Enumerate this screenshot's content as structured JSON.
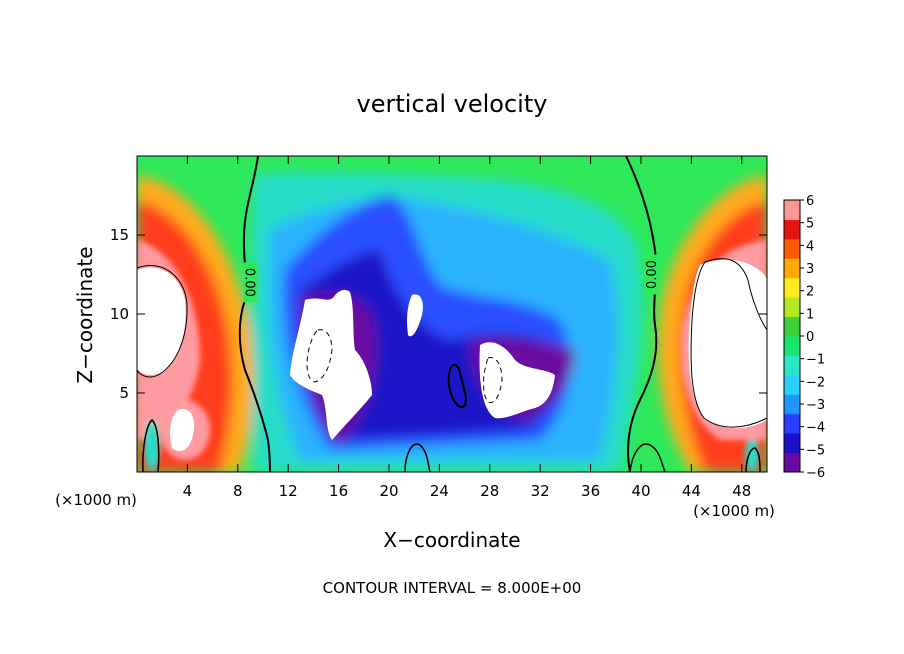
{
  "chart_data": {
    "type": "heatmap",
    "title": "vertical velocity",
    "xlabel": "X−coordinate",
    "ylabel": "Z−coordinate",
    "x_unit_label": "(×1000 m)",
    "y_unit_label": "(×1000 m)",
    "xlim": [
      0,
      50
    ],
    "ylim": [
      0,
      20
    ],
    "x_ticks": [
      4,
      8,
      12,
      16,
      20,
      24,
      28,
      32,
      36,
      40,
      44,
      48
    ],
    "y_ticks": [
      5,
      10,
      15
    ],
    "colorbar": {
      "min": -6,
      "max": 6,
      "tick_values": [
        6,
        5,
        4,
        3,
        2,
        1,
        0,
        -1,
        -2,
        -3,
        -4,
        -5,
        -6
      ],
      "tick_labels": [
        "6",
        "5",
        "4",
        "3",
        "2",
        "1",
        "0",
        "−1",
        "−2",
        "−3",
        "−4",
        "−5",
        "−6"
      ],
      "colors": [
        "#6a0aa0",
        "#1a10c8",
        "#2a3cff",
        "#1e96ff",
        "#28d2ff",
        "#28e6c8",
        "#14e66e",
        "#3cd23c",
        "#b4e61e",
        "#ffeb1e",
        "#ffaa00",
        "#ff5a00",
        "#e61414",
        "#ff9696"
      ]
    },
    "zero_contour_labels": [
      {
        "x": 9.0,
        "z": 12.0,
        "text": "0.00"
      },
      {
        "x": 40.8,
        "z": 12.5,
        "text": "0.00"
      }
    ],
    "contour_interval_text": "CONTOUR INTERVAL = 8.000E+00"
  }
}
